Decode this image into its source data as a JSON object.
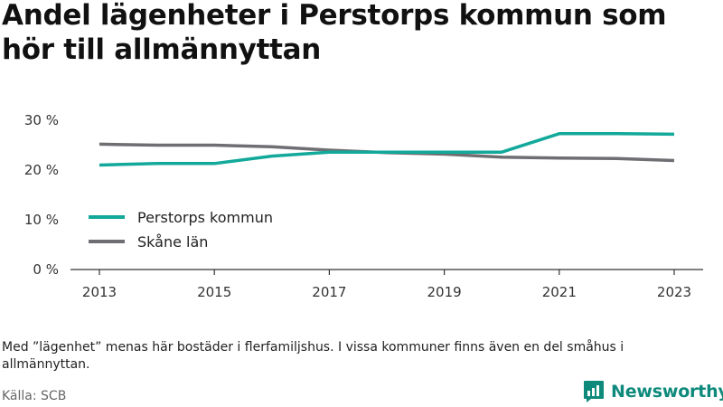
{
  "title": "Andel lägenheter i Perstorps kommun som hör till allmännyttan",
  "note": "Med ”lägenhet” menas här bostäder i flerfamiljshus. I vissa kommuner finns även en del småhus i allmännyttan.",
  "source": "Källa: SCB",
  "brand": "Newsworthy",
  "colors": {
    "perstorp": "#12a99a",
    "skane": "#6e6e73",
    "brand": "#0e8a7c"
  },
  "chart_data": {
    "type": "line",
    "x": [
      2013,
      2014,
      2015,
      2016,
      2017,
      2018,
      2019,
      2020,
      2021,
      2022,
      2023
    ],
    "x_tick_labels": [
      "2013",
      "2015",
      "2017",
      "2019",
      "2021",
      "2023"
    ],
    "y_tick_labels": [
      "0 %",
      "10 %",
      "20 %",
      "30 %"
    ],
    "y_ticks": [
      0,
      10,
      20,
      30
    ],
    "ylim": [
      0,
      30
    ],
    "series": [
      {
        "name": "Perstorps kommun",
        "color": "#12a99a",
        "values": [
          21.0,
          21.3,
          21.3,
          22.8,
          23.6,
          23.6,
          23.6,
          23.6,
          27.3,
          27.3,
          27.2
        ]
      },
      {
        "name": "Skåne län",
        "color": "#6e6e73",
        "values": [
          25.2,
          25.0,
          25.0,
          24.7,
          24.0,
          23.5,
          23.2,
          22.6,
          22.4,
          22.3,
          21.9
        ]
      }
    ],
    "legend_position": "bottom-left",
    "grid": false
  }
}
